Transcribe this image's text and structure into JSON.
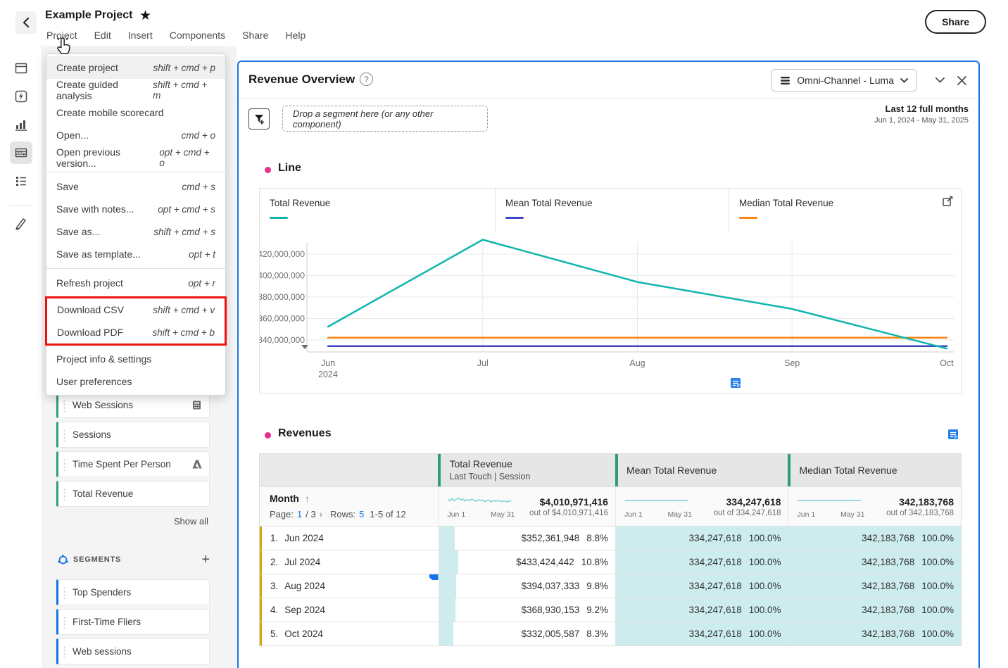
{
  "colors": {
    "accent_blue": "#1473e6",
    "teal": "#0fb5ae",
    "purple": "#4046ca",
    "orange": "#f68511",
    "magenta": "#e5308e",
    "green": "#2d9d78",
    "gold": "#d9a406",
    "teal_bg": "#cdecee",
    "annotation_red": "#ee1111",
    "spark_teal": "#7bcfd4"
  },
  "toolbar": {
    "title": "Example Project",
    "menus": [
      "Project",
      "Edit",
      "Insert",
      "Components",
      "Share",
      "Help"
    ],
    "share_label": "Share"
  },
  "rail_icons": [
    "panels-icon",
    "quick-insights-icon",
    "visualizations-icon",
    "components-icon",
    "toc-icon",
    "style-icon"
  ],
  "menu": {
    "items": [
      {
        "label": "Create project",
        "shortcut": "shift + cmd + p"
      },
      {
        "label": "Create guided analysis",
        "shortcut": "shift + cmd + m"
      },
      {
        "label": "Create mobile scorecard",
        "shortcut": ""
      },
      {
        "label": "Open...",
        "shortcut": "cmd + o"
      },
      {
        "label": "Open previous version...",
        "shortcut": "opt + cmd + o"
      },
      {
        "label": "Save",
        "shortcut": "cmd + s"
      },
      {
        "label": "Save with notes...",
        "shortcut": "opt + cmd + s"
      },
      {
        "label": "Save as...",
        "shortcut": "shift + cmd + s"
      },
      {
        "label": "Save as template...",
        "shortcut": "opt + t"
      },
      {
        "label": "Refresh project",
        "shortcut": "opt + r"
      },
      {
        "label": "Download CSV",
        "shortcut": "shift + cmd + v"
      },
      {
        "label": "Download PDF",
        "shortcut": "shift + cmd + b"
      },
      {
        "label": "Project info & settings",
        "shortcut": ""
      },
      {
        "label": "User preferences",
        "shortcut": ""
      }
    ]
  },
  "left_panel": {
    "metrics": [
      {
        "label": "Web Sessions",
        "icon": "calculator-icon"
      },
      {
        "label": "Sessions",
        "icon": ""
      },
      {
        "label": "Time Spent Per Person",
        "icon": "adobe-a-icon"
      },
      {
        "label": "Total Revenue",
        "icon": ""
      }
    ],
    "show_all": "Show all",
    "segments_title": "SEGMENTS",
    "segments": [
      {
        "label": "Top Spenders"
      },
      {
        "label": "First-Time Fliers"
      },
      {
        "label": "Web sessions"
      }
    ]
  },
  "panel": {
    "title": "Revenue Overview",
    "help": "?",
    "dataset": "Omni-Channel - Luma",
    "drop_zone": "Drop a segment here (or any other component)",
    "date_range_title": "Last 12 full months",
    "date_range_sub": "Jun 1, 2024 - May 31, 2025"
  },
  "line_viz": {
    "title": "Line",
    "legend": [
      {
        "label": "Total Revenue",
        "color": "#0fb5ae"
      },
      {
        "label": "Mean Total Revenue",
        "color": "#4046ca"
      },
      {
        "label": "Median Total Revenue",
        "color": "#f68511"
      }
    ]
  },
  "chart_data": {
    "type": "line",
    "x": [
      "Jun 2024",
      "Jul 2024",
      "Aug 2024",
      "Sep 2024",
      "Oct 2024"
    ],
    "x_tick_labels": [
      "Jun",
      "Jul",
      "Aug",
      "Sep",
      "Oct"
    ],
    "x_sub_label": "2024",
    "series": [
      {
        "name": "Total Revenue",
        "color": "#0fb5ae",
        "values": [
          352361948,
          433424442,
          394037333,
          368930153,
          332005587
        ]
      },
      {
        "name": "Mean Total Revenue",
        "color": "#4046ca",
        "values": [
          334247618,
          334247618,
          334247618,
          334247618,
          334247618
        ]
      },
      {
        "name": "Median Total Revenue",
        "color": "#f68511",
        "values": [
          342183768,
          342183768,
          342183768,
          342183768,
          342183768
        ]
      }
    ],
    "yticks": [
      340000000,
      360000000,
      380000000,
      400000000,
      420000000
    ],
    "ytick_labels": [
      "340,000,000",
      "360,000,000",
      "380,000,000",
      "400,000,000",
      "420,000,000"
    ],
    "ylim": [
      329000000,
      437000000
    ],
    "grid": true,
    "legend_position": "top",
    "y_axis_truncated": true
  },
  "table": {
    "title": "Revenues",
    "columns": [
      {
        "title": "Total Revenue",
        "subtitle": "Last Touch | Session"
      },
      {
        "title": "Mean Total Revenue",
        "subtitle": ""
      },
      {
        "title": "Median Total Revenue",
        "subtitle": ""
      }
    ],
    "month_header": "Month",
    "sort_arrow": "↑",
    "pagination": {
      "page_label": "Page:",
      "page": "1",
      "of": "/ 3",
      "next": "›",
      "rows_label": "Rows:",
      "rows": "5",
      "range": "1-5 of 12"
    },
    "summaries": [
      {
        "value": "$4,010,971,416",
        "out_of": "out of $4,010,971,416",
        "date_start": "Jun 1",
        "date_end": "May 31",
        "sparkline": [
          0.62,
          0.5,
          0.75,
          0.45,
          0.68,
          0.85,
          0.55,
          0.72,
          0.4,
          0.62,
          0.5,
          0.7,
          0.55,
          0.38,
          0.6,
          0.45,
          0.55,
          0.35,
          0.48,
          0.55,
          0.3,
          0.5,
          0.38,
          0.52,
          0.42,
          0.35,
          0.45,
          0.3,
          0.42,
          0.4
        ]
      },
      {
        "value": "334,247,618",
        "out_of": "out of 334,247,618",
        "date_start": "Jun 1",
        "date_end": "May 31",
        "sparkline": [
          0.5,
          0.5
        ]
      },
      {
        "value": "342,183,768",
        "out_of": "out of 342,183,768",
        "date_start": "Jun 1",
        "date_end": "May 31",
        "sparkline": [
          0.5,
          0.5
        ]
      }
    ],
    "rows": [
      {
        "num": "1.",
        "month": "Jun 2024",
        "total": "$352,361,948",
        "total_pct": "8.8%",
        "pct_val": 8.8,
        "mean": "334,247,618",
        "mean_pct": "100.0%",
        "median": "342,183,768",
        "median_pct": "100.0%"
      },
      {
        "num": "2.",
        "month": "Jul 2024",
        "total": "$433,424,442",
        "total_pct": "10.8%",
        "pct_val": 10.8,
        "mean": "334,247,618",
        "mean_pct": "100.0%",
        "median": "342,183,768",
        "median_pct": "100.0%"
      },
      {
        "num": "3.",
        "month": "Aug 2024",
        "total": "$394,037,333",
        "total_pct": "9.8%",
        "pct_val": 9.8,
        "mean": "334,247,618",
        "mean_pct": "100.0%",
        "median": "342,183,768",
        "median_pct": "100.0%"
      },
      {
        "num": "4.",
        "month": "Sep 2024",
        "total": "$368,930,153",
        "total_pct": "9.2%",
        "pct_val": 9.2,
        "mean": "334,247,618",
        "mean_pct": "100.0%",
        "median": "342,183,768",
        "median_pct": "100.0%"
      },
      {
        "num": "5.",
        "month": "Oct 2024",
        "total": "$332,005,587",
        "total_pct": "8.3%",
        "pct_val": 8.3,
        "mean": "334,247,618",
        "mean_pct": "100.0%",
        "median": "342,183,768",
        "median_pct": "100.0%"
      }
    ]
  }
}
